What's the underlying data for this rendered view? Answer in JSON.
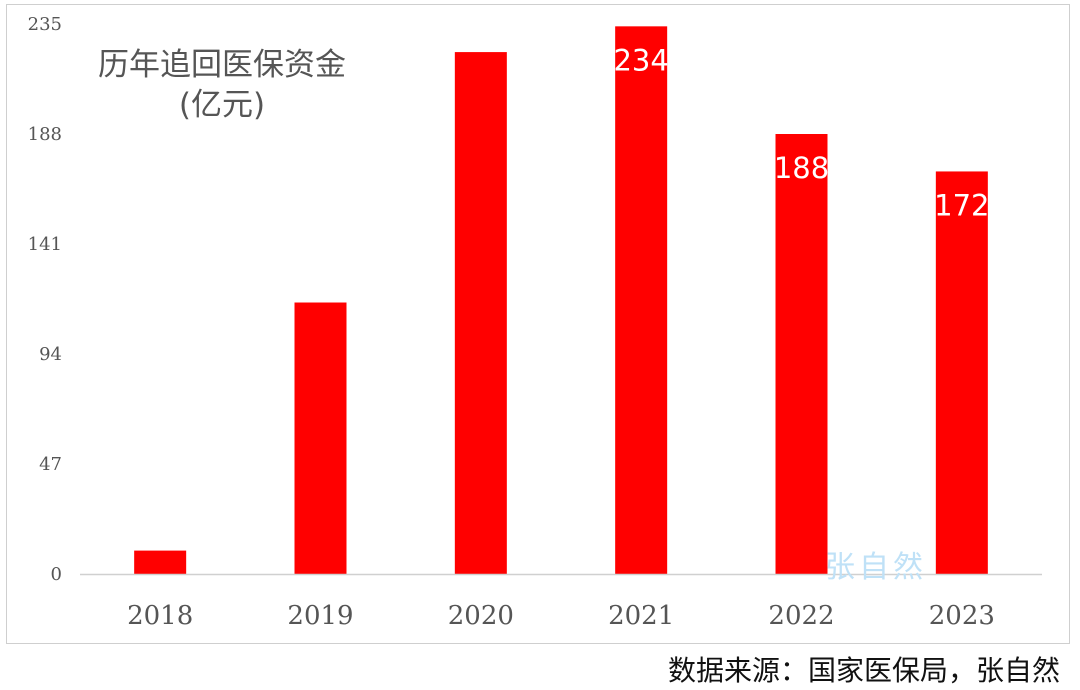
{
  "chart_data": {
    "type": "bar",
    "title": "历年追回医保资金",
    "unit": "(亿元)",
    "categories": [
      "2018",
      "2019",
      "2020",
      "2021",
      "2022",
      "2023"
    ],
    "values": [
      10,
      116,
      223,
      234,
      188,
      172
    ],
    "data_labels": [
      "",
      "",
      "",
      "234",
      "188",
      "172"
    ],
    "ylim": [
      0,
      235
    ],
    "yticks": [
      0,
      47,
      94,
      141,
      188,
      235
    ],
    "grid": false,
    "legend": "none",
    "bar_color": "#ff0000",
    "watermark": "张自然",
    "source": "数据来源：国家医保局，张自然"
  }
}
